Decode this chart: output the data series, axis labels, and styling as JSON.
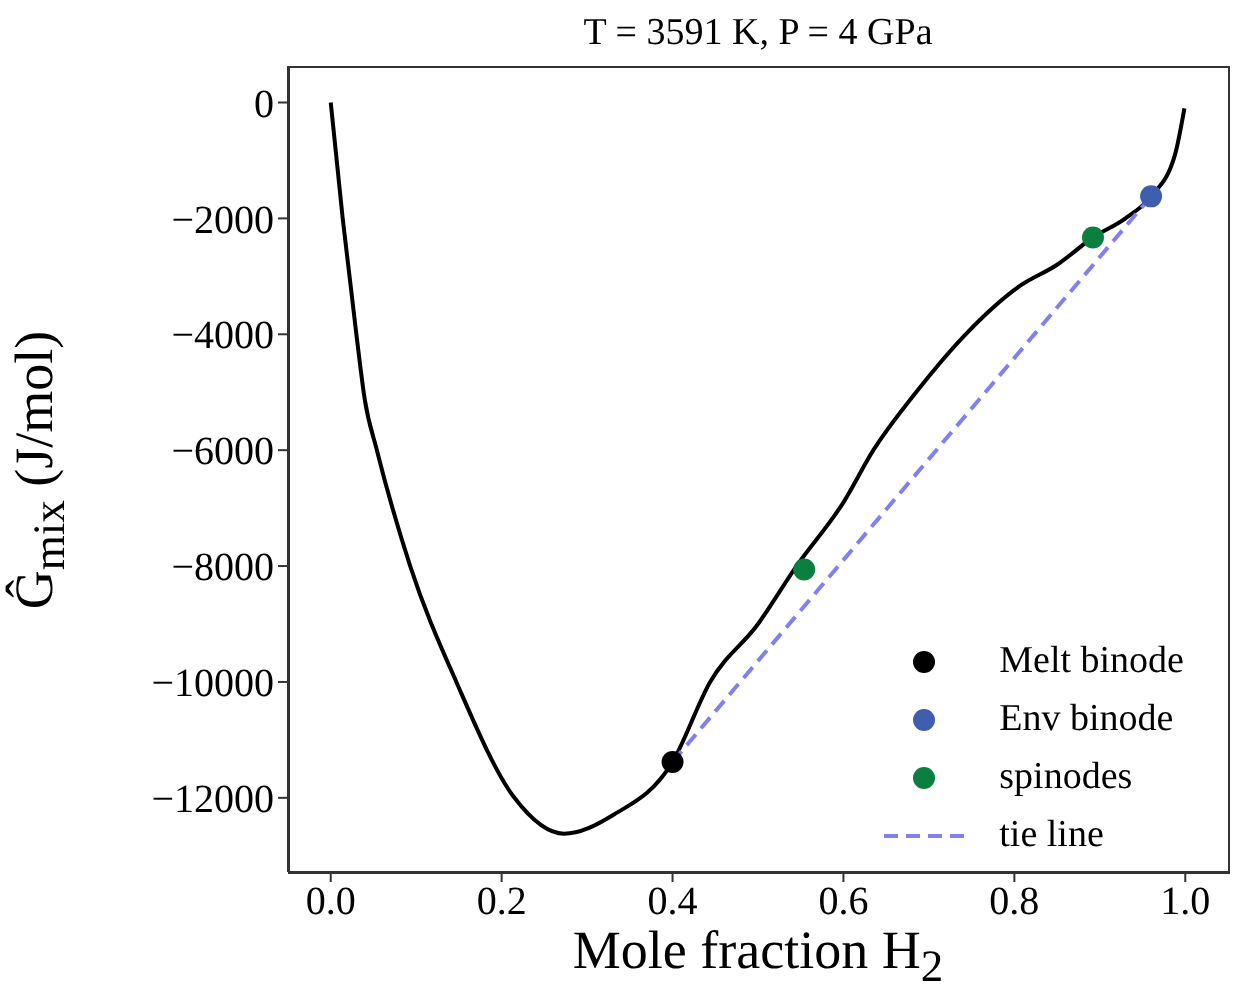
{
  "chart_data": {
    "type": "line",
    "title": "T = 3591 K, P = 4 GPa",
    "xlabel": "Mole fraction H$_{2}$",
    "ylabel": "Ĝ$_{mix}$ (J/mol)",
    "xlim": [
      -0.05,
      1.05
    ],
    "xticks": [
      {
        "value": 0,
        "label": "0.0"
      },
      0.2,
      0.4,
      0.6,
      0.8,
      {
        "value": 1,
        "label": "1.0"
      }
    ],
    "ylim": [
      -13280,
      630
    ],
    "yticks": [
      -12000,
      -10000,
      -8000,
      -6000,
      -4000,
      -2000,
      0
    ],
    "grid": false,
    "legend": "bottom right",
    "series": [
      {
        "color": "#000000",
        "line_style": "solid",
        "marker": "none",
        "x": [
          0,
          0.014,
          0.03,
          0.04,
          0.054,
          0.093,
          0.147,
          0.215,
          0.273,
          0.33,
          0.4,
          0.444,
          0.5,
          0.545,
          0.6,
          0.635,
          0.685,
          0.743,
          0.806,
          0.85,
          0.892,
          0.93,
          0.96,
          0.988,
          0.999
        ],
        "values": [
          0,
          -2000,
          -4000,
          -5140,
          -6000,
          -8000,
          -10000,
          -12000,
          -12620,
          -12300,
          -11380,
          -10000,
          -9000,
          -8000,
          -6900,
          -6000,
          -5000,
          -4000,
          -3170,
          -2800,
          -2330,
          -2000,
          -1620,
          -900,
          -100
        ]
      },
      {
        "name": "Melt binode",
        "type": "scatter",
        "color": "#000000",
        "marker": "circle",
        "x": [
          0.4
        ],
        "values": [
          -11380
        ]
      },
      {
        "name": "Env binode",
        "type": "scatter",
        "color": "#3f5fae",
        "marker": "circle",
        "x": [
          0.96
        ],
        "values": [
          -1620
        ]
      },
      {
        "name": "spinodes",
        "type": "scatter",
        "color": "#0a7f3f",
        "marker": "circle",
        "x": [
          0.554,
          0.892
        ],
        "values": [
          -8060,
          -2330
        ]
      },
      {
        "name": "tie line",
        "color": "#8080f0",
        "line_style": "dashed",
        "marker": "none",
        "x": [
          0.4,
          0.96
        ],
        "values": [
          -11380,
          -1620
        ]
      }
    ]
  }
}
